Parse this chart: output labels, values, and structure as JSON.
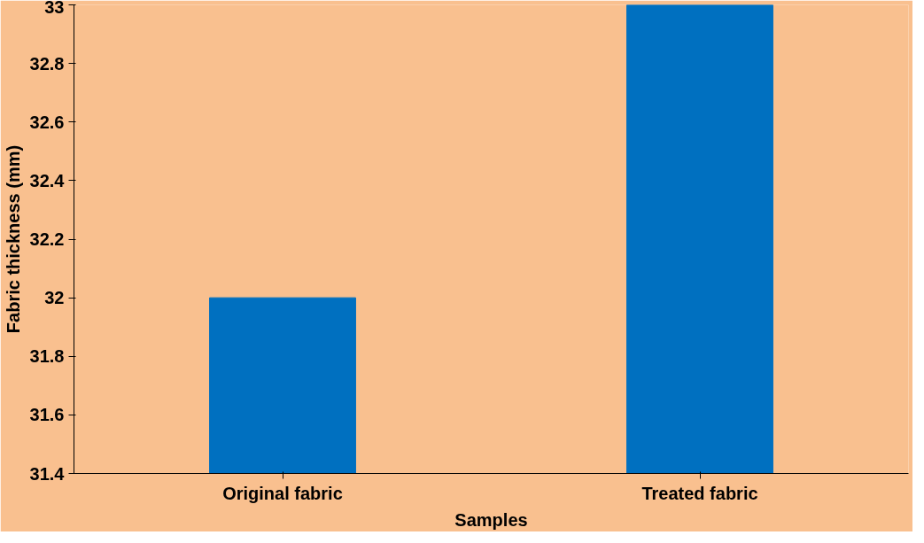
{
  "chart_data": {
    "type": "bar",
    "xlabel": "Samples",
    "ylabel": "Fabric thickness (mm)",
    "categories": [
      "Original fabric",
      "Treated fabric"
    ],
    "values": [
      32.0,
      33.0
    ],
    "color": "#0070c0",
    "ylim": [
      31.4,
      33
    ],
    "yticks": [
      31.4,
      31.6,
      31.8,
      32,
      32.2,
      32.4,
      32.6,
      32.8,
      33
    ],
    "grid": false
  }
}
